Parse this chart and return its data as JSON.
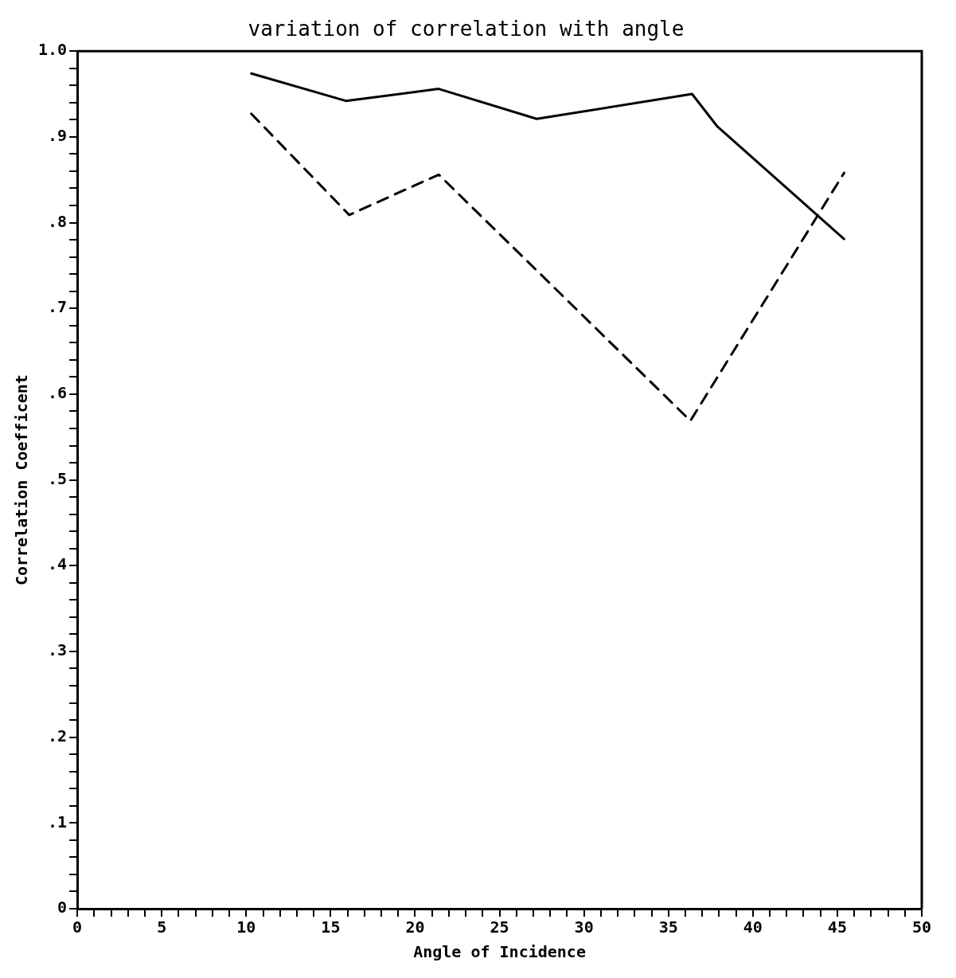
{
  "chart_data": {
    "type": "line",
    "title": "variation of correlation with angle",
    "xlabel": "Angle of Incidence",
    "ylabel": "Correlation Coefficent",
    "series": [
      {
        "color": "#000000",
        "line_style": "solid",
        "x": [
          10.3,
          15.9,
          21.4,
          27.2,
          36.4,
          37.9,
          45.4
        ],
        "values": [
          0.974,
          0.942,
          0.956,
          0.921,
          0.95,
          0.912,
          0.781
        ]
      },
      {
        "color": "#000000",
        "line_style": "dashed",
        "x": [
          10.3,
          16.1,
          21.4,
          36.3,
          45.4
        ],
        "values": [
          0.927,
          0.809,
          0.856,
          0.569,
          0.858
        ]
      }
    ],
    "xlim": [
      0,
      50
    ],
    "ylim": [
      0,
      1
    ],
    "xticks": [
      0,
      {
        "value": 1,
        "label": null
      },
      {
        "value": 2,
        "label": null
      },
      {
        "value": 3,
        "label": null
      },
      {
        "value": 4,
        "label": null
      },
      5,
      {
        "value": 6,
        "label": null
      },
      {
        "value": 7,
        "label": null
      },
      {
        "value": 8,
        "label": null
      },
      {
        "value": 9,
        "label": null
      },
      10,
      {
        "value": 11,
        "label": null
      },
      {
        "value": 12,
        "label": null
      },
      {
        "value": 13,
        "label": null
      },
      {
        "value": 14,
        "label": null
      },
      15,
      {
        "value": 16,
        "label": null
      },
      {
        "value": 17,
        "label": null
      },
      {
        "value": 18,
        "label": null
      },
      {
        "value": 19,
        "label": null
      },
      20,
      {
        "value": 21,
        "label": null
      },
      {
        "value": 22,
        "label": null
      },
      {
        "value": 23,
        "label": null
      },
      {
        "value": 24,
        "label": null
      },
      25,
      {
        "value": 26,
        "label": null
      },
      {
        "value": 27,
        "label": null
      },
      {
        "value": 28,
        "label": null
      },
      {
        "value": 29,
        "label": null
      },
      30,
      {
        "value": 31,
        "label": null
      },
      {
        "value": 32,
        "label": null
      },
      {
        "value": 33,
        "label": null
      },
      {
        "value": 34,
        "label": null
      },
      35,
      {
        "value": 36,
        "label": null
      },
      {
        "value": 37,
        "label": null
      },
      {
        "value": 38,
        "label": null
      },
      {
        "value": 39,
        "label": null
      },
      40,
      {
        "value": 41,
        "label": null
      },
      {
        "value": 42,
        "label": null
      },
      {
        "value": 43,
        "label": null
      },
      {
        "value": 44,
        "label": null
      },
      45,
      {
        "value": 46,
        "label": null
      },
      {
        "value": 47,
        "label": null
      },
      {
        "value": 48,
        "label": null
      },
      {
        "value": 49,
        "label": null
      },
      50
    ],
    "yticks": [
      0,
      {
        "value": 0.02,
        "label": null
      },
      {
        "value": 0.04,
        "label": null
      },
      {
        "value": 0.06,
        "label": null
      },
      {
        "value": 0.08,
        "label": null
      },
      {
        "value": 0.1,
        "label": ".1"
      },
      {
        "value": 0.12,
        "label": null
      },
      {
        "value": 0.14,
        "label": null
      },
      {
        "value": 0.16,
        "label": null
      },
      {
        "value": 0.18,
        "label": null
      },
      {
        "value": 0.2,
        "label": ".2"
      },
      {
        "value": 0.22,
        "label": null
      },
      {
        "value": 0.24,
        "label": null
      },
      {
        "value": 0.26,
        "label": null
      },
      {
        "value": 0.28,
        "label": null
      },
      {
        "value": 0.3,
        "label": ".3"
      },
      {
        "value": 0.32,
        "label": null
      },
      {
        "value": 0.34,
        "label": null
      },
      {
        "value": 0.36,
        "label": null
      },
      {
        "value": 0.38,
        "label": null
      },
      {
        "value": 0.4,
        "label": ".4"
      },
      {
        "value": 0.42,
        "label": null
      },
      {
        "value": 0.44,
        "label": null
      },
      {
        "value": 0.46,
        "label": null
      },
      {
        "value": 0.48,
        "label": null
      },
      {
        "value": 0.5,
        "label": ".5"
      },
      {
        "value": 0.52,
        "label": null
      },
      {
        "value": 0.54,
        "label": null
      },
      {
        "value": 0.56,
        "label": null
      },
      {
        "value": 0.58,
        "label": null
      },
      {
        "value": 0.6,
        "label": ".6"
      },
      {
        "value": 0.62,
        "label": null
      },
      {
        "value": 0.64,
        "label": null
      },
      {
        "value": 0.66,
        "label": null
      },
      {
        "value": 0.68,
        "label": null
      },
      {
        "value": 0.7,
        "label": ".7"
      },
      {
        "value": 0.72,
        "label": null
      },
      {
        "value": 0.74,
        "label": null
      },
      {
        "value": 0.76,
        "label": null
      },
      {
        "value": 0.78,
        "label": null
      },
      {
        "value": 0.8,
        "label": ".8"
      },
      {
        "value": 0.82,
        "label": null
      },
      {
        "value": 0.84,
        "label": null
      },
      {
        "value": 0.86,
        "label": null
      },
      {
        "value": 0.88,
        "label": null
      },
      {
        "value": 0.9,
        "label": ".9"
      },
      {
        "value": 0.92,
        "label": null
      },
      {
        "value": 0.94,
        "label": null
      },
      {
        "value": 0.96,
        "label": null
      },
      {
        "value": 0.98,
        "label": null
      },
      {
        "value": 1,
        "label": "1.0"
      }
    ]
  }
}
